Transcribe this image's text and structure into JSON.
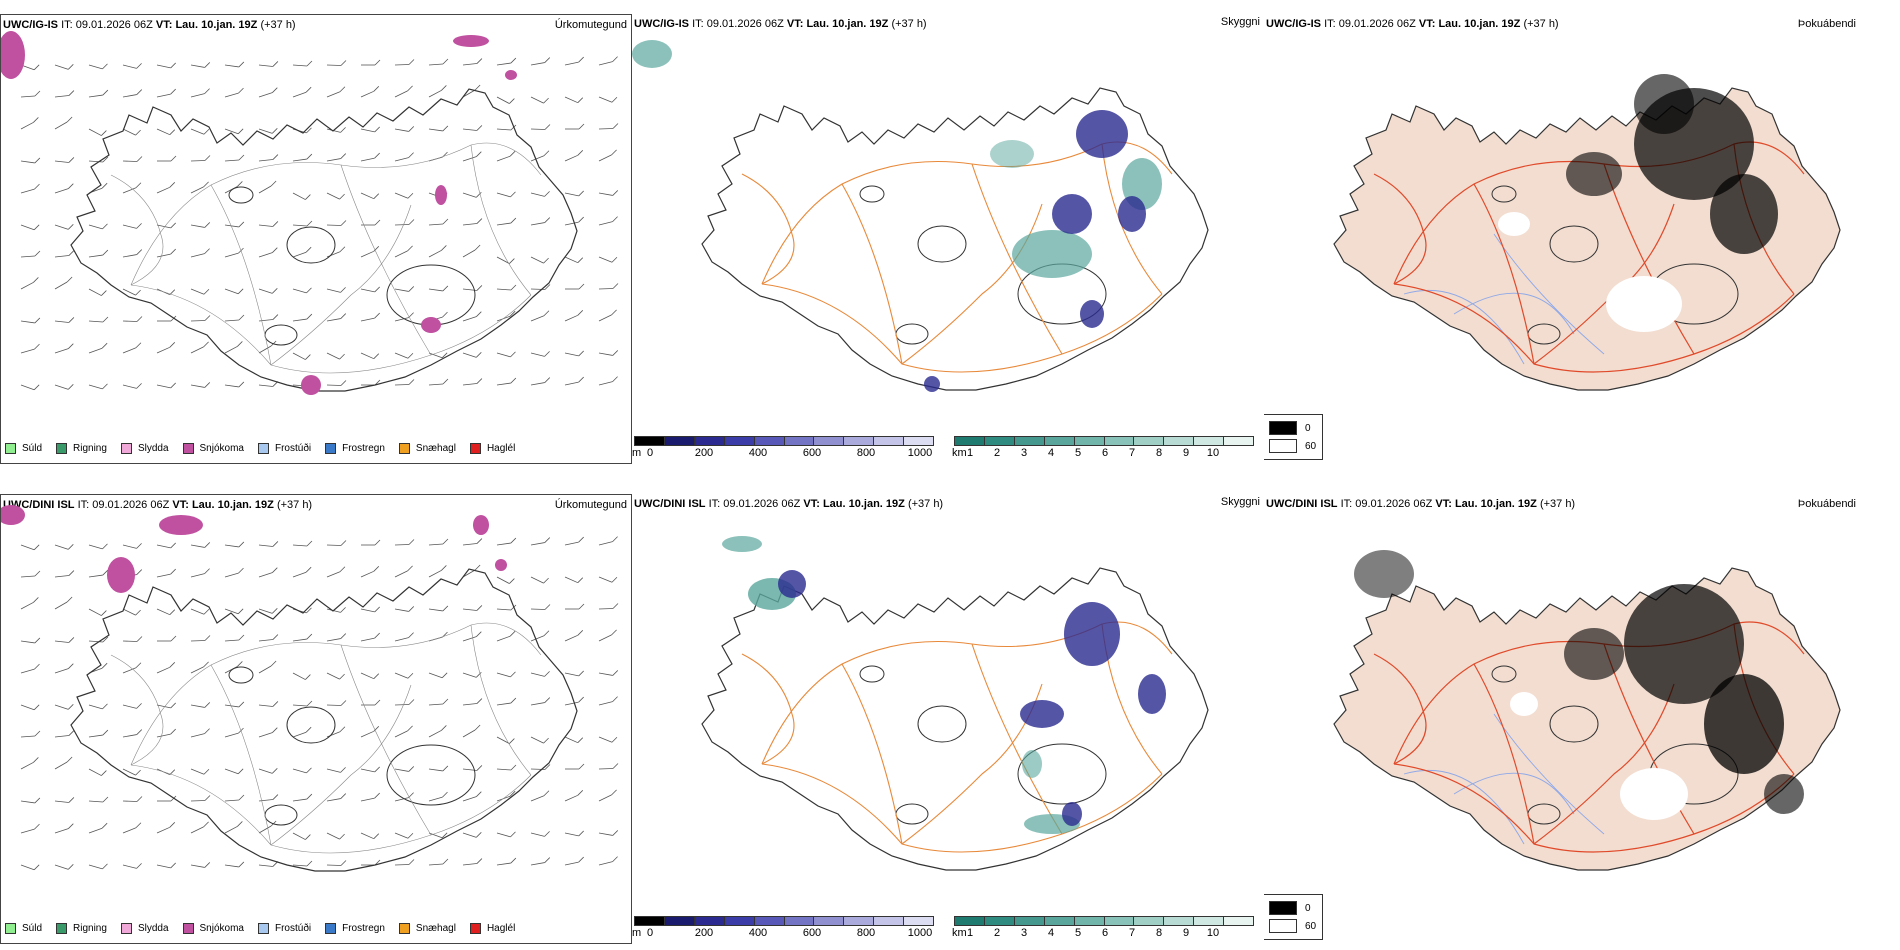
{
  "rows": [
    {
      "model": "UWC/IG-IS",
      "it_label": "IT:",
      "it_value": "09.01.2026 06Z",
      "vt_label": "VT:",
      "vt_value": "Lau. 10.jan. 19Z",
      "lead": "(+37 h)"
    },
    {
      "model": "UWC/DINI ISL",
      "it_label": "IT:",
      "it_value": "09.01.2026 06Z",
      "vt_label": "VT:",
      "vt_value": "Lau. 10.jan. 19Z",
      "lead": "(+37 h)"
    }
  ],
  "params": {
    "precip_type": "Úrkomutegund",
    "visibility": "Skyggni",
    "fog": "Þokuábendi"
  },
  "precip_legend": [
    {
      "label": "Súld",
      "color": "#90ee90"
    },
    {
      "label": "Rigning",
      "color": "#3a9a6a"
    },
    {
      "label": "Slydda",
      "color": "#f0a8d8"
    },
    {
      "label": "Snjókoma",
      "color": "#c050a0"
    },
    {
      "label": "Frostúði",
      "color": "#a8c8f0"
    },
    {
      "label": "Frostregn",
      "color": "#3a78c8"
    },
    {
      "label": "Snæhagl",
      "color": "#f0a020"
    },
    {
      "label": "Haglél",
      "color": "#e02020"
    }
  ],
  "ceiling_scale": {
    "unit": "m",
    "ticks": [
      "0",
      "200",
      "400",
      "600",
      "800",
      "1000"
    ],
    "colors": [
      "#000000",
      "#1a1a6e",
      "#2a2a90",
      "#3c3ca8",
      "#5858b8",
      "#7474c4",
      "#9090d0",
      "#aaaadc",
      "#c4c4e8",
      "#dcdcf2"
    ]
  },
  "vis_scale": {
    "unit": "km",
    "ticks": [
      "1",
      "2",
      "3",
      "4",
      "5",
      "6",
      "7",
      "8",
      "9",
      "10"
    ],
    "colors": [
      "#1f7a70",
      "#2f8a80",
      "#44988e",
      "#5aa69c",
      "#70b4aa",
      "#88c2b8",
      "#a0cfc6",
      "#b8dcd4",
      "#d0e8e2",
      "#e8f4f0"
    ]
  },
  "fog_legend": [
    {
      "label": "0",
      "color": "#000000"
    },
    {
      "label": "60",
      "color": "#ffffff"
    }
  ],
  "colors": {
    "coast": "#333333",
    "roads_orange": "#e8893a",
    "roads_red": "#e04a2a",
    "fog_land": "#f2ddd0",
    "rivers": "#8fa8e8",
    "snow": "#c050a0",
    "ceiling_blue": "#2a2a90",
    "vis_teal": "#5aa69c"
  }
}
